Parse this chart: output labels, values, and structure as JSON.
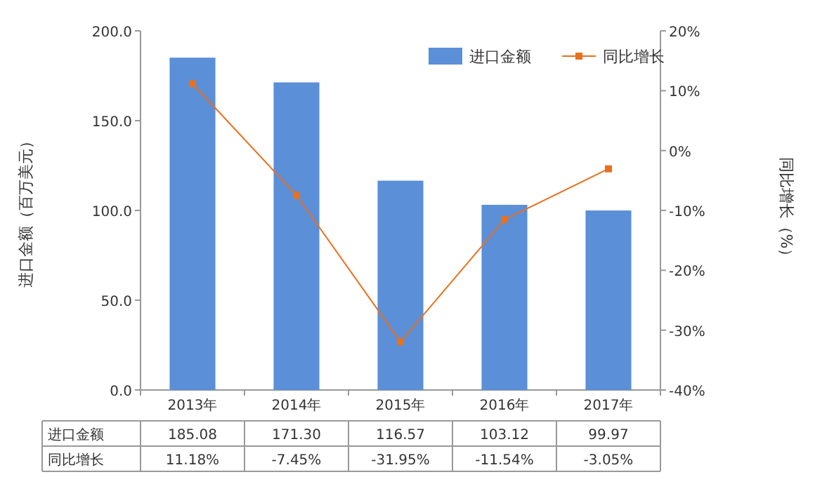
{
  "chart_data": {
    "type": "bar",
    "categories": [
      "2013年",
      "2014年",
      "2015年",
      "2016年",
      "2017年"
    ],
    "ylabel": "进口金额（百万美元）",
    "y2label": "同比增长（%）",
    "series": [
      {
        "name": "进口金额",
        "color": "#5b8fd8",
        "values": [
          185.08,
          171.3,
          116.57,
          103.12,
          99.97
        ],
        "value_labels": [
          "185.08",
          "171.30",
          "116.57",
          "103.12",
          "99.97"
        ]
      },
      {
        "name": "同比增长",
        "type": "line",
        "axis": "y2",
        "color": "#e8701e",
        "marker": "square",
        "values": [
          11.18,
          -7.45,
          -31.95,
          -11.54,
          -3.05
        ],
        "value_labels": [
          "11.18%",
          "-7.45%",
          "-31.95%",
          "-11.54%",
          "-3.05%"
        ]
      }
    ],
    "ylim": [
      0,
      200
    ],
    "yticks": [
      {
        "value": 0,
        "label": "0.0"
      },
      {
        "value": 50,
        "label": "50.0"
      },
      {
        "value": 100,
        "label": "100.0"
      },
      {
        "value": 150,
        "label": "150.0"
      },
      {
        "value": 200,
        "label": "200.0"
      }
    ],
    "y2lim": [
      -40,
      20
    ],
    "y2ticks": [
      {
        "value": -40,
        "label": "-40%"
      },
      {
        "value": -30,
        "label": "-30%"
      },
      {
        "value": -20,
        "label": "-20%"
      },
      {
        "value": -10,
        "label": "-10%"
      },
      {
        "value": 0,
        "label": "0%"
      },
      {
        "value": 10,
        "label": "10%"
      },
      {
        "value": 20,
        "label": "20%"
      }
    ],
    "legend": "top right"
  }
}
